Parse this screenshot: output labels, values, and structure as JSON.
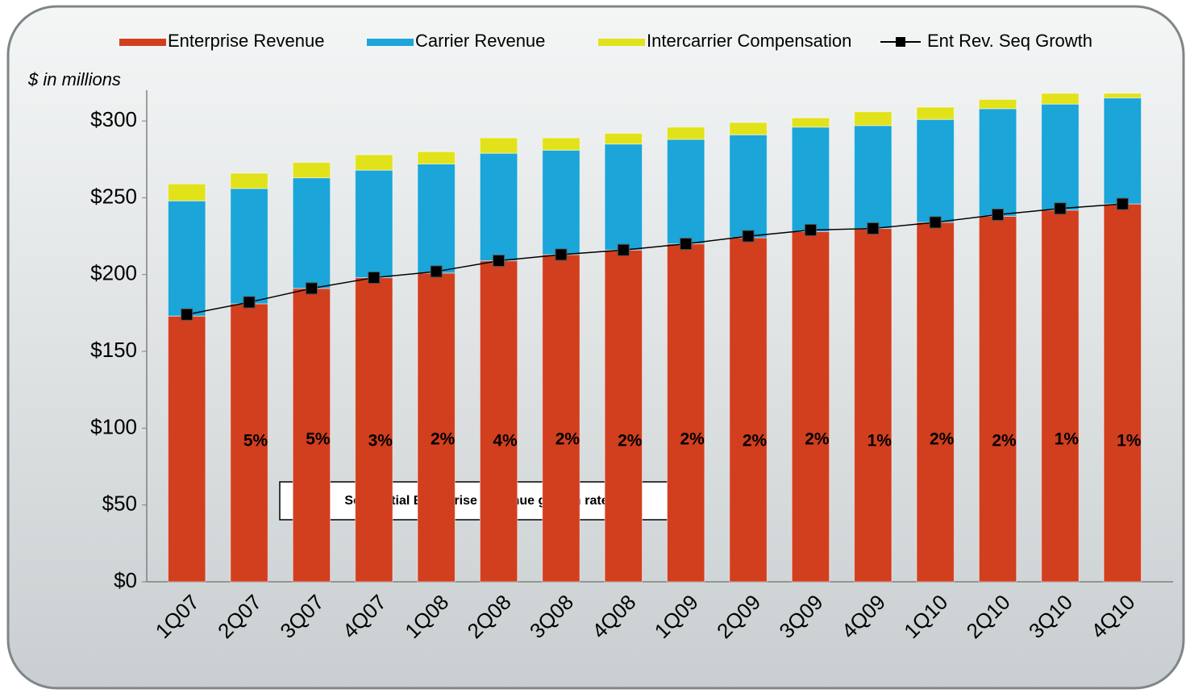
{
  "chart_data": {
    "type": "bar",
    "stacked": true,
    "y_axis_label": "$ in millions",
    "annotation": "Sequential Enterprise Revenue growth rate",
    "categories": [
      "1Q07",
      "2Q07",
      "3Q07",
      "4Q07",
      "1Q08",
      "2Q08",
      "3Q08",
      "4Q08",
      "1Q09",
      "2Q09",
      "3Q09",
      "4Q09",
      "1Q10",
      "2Q10",
      "3Q10",
      "4Q10"
    ],
    "series": [
      {
        "name": "Enterprise Revenue",
        "color": "#d13f1f",
        "values": [
          173,
          181,
          191,
          198,
          201,
          209,
          213,
          216,
          220,
          224,
          228,
          230,
          234,
          238,
          242,
          246
        ]
      },
      {
        "name": "Carrier Revenue",
        "color": "#1ba5d9",
        "values": [
          75,
          75,
          72,
          70,
          71,
          70,
          68,
          69,
          68,
          67,
          68,
          67,
          67,
          70,
          69,
          69
        ]
      },
      {
        "name": "Intercarrier Compensation",
        "color": "#e2e21a",
        "values": [
          11,
          10,
          10,
          10,
          8,
          10,
          8,
          7,
          8,
          8,
          6,
          9,
          8,
          6,
          7,
          3
        ]
      },
      {
        "name": "Ent Rev. Seq Growth",
        "type": "line",
        "color": "#000000",
        "values": [
          174,
          182,
          191,
          198,
          202,
          209,
          213,
          216,
          220,
          225,
          229,
          230,
          234,
          239,
          243,
          246
        ],
        "value_labels": [
          null,
          "5%",
          "5%",
          "3%",
          "2%",
          "4%",
          "2%",
          "2%",
          "2%",
          "2%",
          "2%",
          "1%",
          "2%",
          "2%",
          "1%",
          "1%"
        ]
      }
    ],
    "ylim": [
      0,
      320
    ],
    "yticks": [
      {
        "value": 0,
        "label": "$0"
      },
      {
        "value": 50,
        "label": "$50"
      },
      {
        "value": 100,
        "label": "$100"
      },
      {
        "value": 150,
        "label": "$150"
      },
      {
        "value": 200,
        "label": "$200"
      },
      {
        "value": 250,
        "label": "$250"
      },
      {
        "value": 300,
        "label": "$300"
      }
    ],
    "grid": false,
    "legend": "top"
  }
}
